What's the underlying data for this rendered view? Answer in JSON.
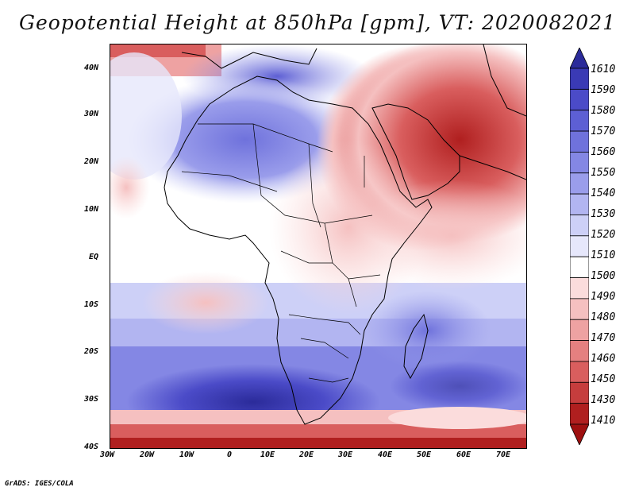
{
  "title": "Geopotential Height at 850hPa [gpm], VT: 2020082021",
  "credit": "GrADS: IGES/COLA",
  "lat_labels": [
    "40N",
    "30N",
    "20N",
    "10N",
    "EQ",
    "10S",
    "20S",
    "30S",
    "40S"
  ],
  "lon_labels": [
    "30W",
    "20W",
    "10W",
    "0",
    "10E",
    "20E",
    "30E",
    "40E",
    "50E",
    "60E",
    "70E"
  ],
  "colorbar": {
    "labels": [
      "1610",
      "1590",
      "1580",
      "1570",
      "1560",
      "1550",
      "1540",
      "1530",
      "1520",
      "1510",
      "1500",
      "1490",
      "1480",
      "1470",
      "1460",
      "1450",
      "1430",
      "1410"
    ],
    "colors": [
      "#2b2b9a",
      "#3a3ab5",
      "#4b4bc8",
      "#5d5fd4",
      "#6f72dc",
      "#8487e4",
      "#9a9deb",
      "#b2b5f1",
      "#cdd0f7",
      "#e6e7fb",
      "#ffffff",
      "#fbdcdc",
      "#f5c0c0",
      "#eea2a2",
      "#e58080",
      "#d95e5e",
      "#c63d3d",
      "#b01f1f",
      "#9e1010"
    ]
  }
}
